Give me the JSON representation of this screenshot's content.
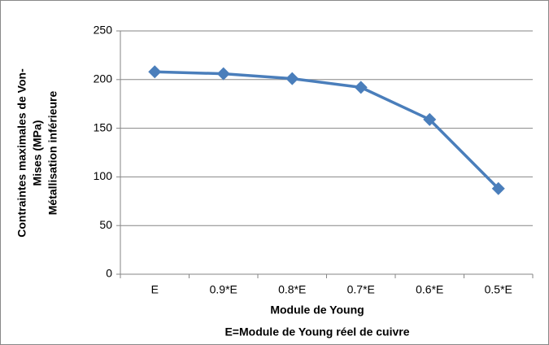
{
  "chart_data": {
    "type": "line",
    "categories": [
      "E",
      "0.9*E",
      "0.8*E",
      "0.7*E",
      "0.6*E",
      "0.5*E"
    ],
    "series": [
      {
        "name": "Contraintes maximales de Von-Mises",
        "color": "#4a7ebb",
        "values": [
          208,
          206,
          201,
          192,
          159,
          88
        ]
      }
    ],
    "ylim": [
      0,
      250
    ],
    "yticks": [
      0,
      50,
      100,
      150,
      200,
      250
    ],
    "grid": true,
    "xlabel": [
      "Module de Young",
      "E=Module de Young réel de cuivre"
    ],
    "ylabel": [
      "Contraintes maximales de Von-",
      "Mises (MPa)",
      "Métallisation inférieure"
    ]
  }
}
